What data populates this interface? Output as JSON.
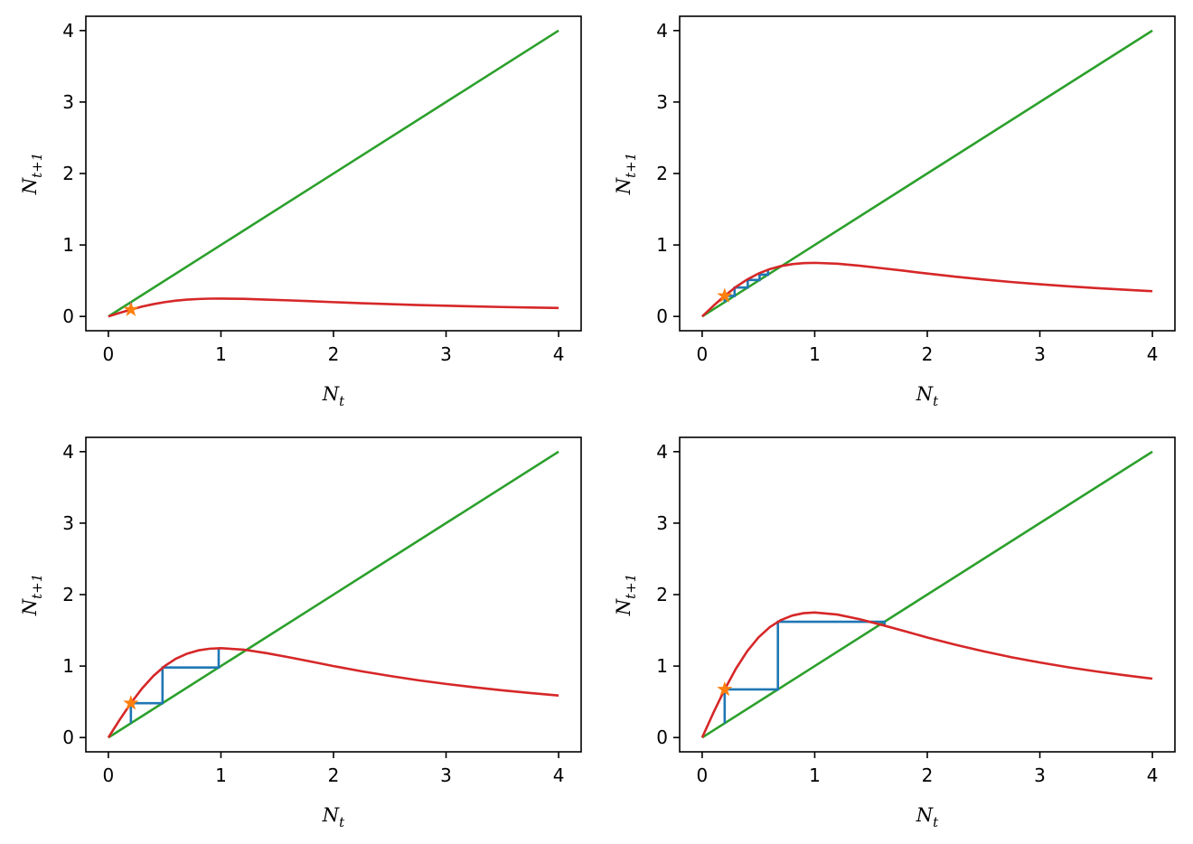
{
  "figure": {
    "background": "#ffffff",
    "colors": {
      "identity": "#2ca02c",
      "map": "#d62728",
      "cobweb": "#1f77b4",
      "start_marker": "#ff7f0e"
    }
  },
  "chart_data": [
    {
      "type": "line",
      "title": "",
      "xlabel": "N_t",
      "ylabel": "N_{t+1}",
      "xlim": [
        -0.2,
        4.2
      ],
      "ylim": [
        -0.2,
        4.2
      ],
      "xticks": [
        "0",
        "1",
        "2",
        "3",
        "4"
      ],
      "yticks": [
        "0",
        "1",
        "2",
        "3",
        "4"
      ],
      "grid": false,
      "identity_line": {
        "x": [
          0,
          4
        ],
        "y": [
          0,
          4
        ]
      },
      "map_curve": {
        "x": [
          0,
          0.1,
          0.2,
          0.3,
          0.4,
          0.5,
          0.6,
          0.7,
          0.8,
          0.9,
          1.0,
          1.2,
          1.4,
          1.6,
          1.8,
          2.0,
          2.25,
          2.5,
          2.75,
          3.0,
          3.25,
          3.5,
          3.75,
          4.0
        ],
        "y": [
          0,
          0.05,
          0.096,
          0.138,
          0.172,
          0.2,
          0.221,
          0.235,
          0.244,
          0.249,
          0.25,
          0.246,
          0.236,
          0.225,
          0.213,
          0.2,
          0.185,
          0.172,
          0.16,
          0.15,
          0.141,
          0.132,
          0.125,
          0.118
        ]
      },
      "cobweb": {
        "x": [
          0.2,
          0.2
        ],
        "y": [
          0.2,
          0.096
        ]
      },
      "start_point": {
        "x": 0.2,
        "y": 0.096
      }
    },
    {
      "type": "line",
      "title": "",
      "xlabel": "N_t",
      "ylabel": "N_{t+1}",
      "xlim": [
        -0.2,
        4.2
      ],
      "ylim": [
        -0.2,
        4.2
      ],
      "xticks": [
        "0",
        "1",
        "2",
        "3",
        "4"
      ],
      "yticks": [
        "0",
        "1",
        "2",
        "3",
        "4"
      ],
      "grid": false,
      "identity_line": {
        "x": [
          0,
          4
        ],
        "y": [
          0,
          4
        ]
      },
      "map_curve": {
        "x": [
          0,
          0.1,
          0.2,
          0.3,
          0.4,
          0.5,
          0.6,
          0.7,
          0.8,
          0.9,
          1.0,
          1.2,
          1.4,
          1.6,
          1.8,
          2.0,
          2.25,
          2.5,
          2.75,
          3.0,
          3.25,
          3.5,
          3.75,
          4.0
        ],
        "y": [
          0,
          0.149,
          0.288,
          0.413,
          0.517,
          0.6,
          0.662,
          0.705,
          0.732,
          0.746,
          0.75,
          0.738,
          0.709,
          0.674,
          0.638,
          0.6,
          0.556,
          0.517,
          0.481,
          0.45,
          0.422,
          0.397,
          0.375,
          0.353
        ]
      },
      "cobweb": {
        "x": [
          0.2,
          0.2,
          0.288,
          0.288,
          0.405,
          0.405,
          0.51,
          0.51,
          0.585,
          0.585
        ],
        "y": [
          0.2,
          0.288,
          0.288,
          0.405,
          0.405,
          0.51,
          0.51,
          0.585,
          0.585,
          0.64
        ]
      },
      "start_point": {
        "x": 0.2,
        "y": 0.288
      }
    },
    {
      "type": "line",
      "title": "",
      "xlabel": "N_t",
      "ylabel": "N_{t+1}",
      "xlim": [
        -0.2,
        4.2
      ],
      "ylim": [
        -0.2,
        4.2
      ],
      "xticks": [
        "0",
        "1",
        "2",
        "3",
        "4"
      ],
      "yticks": [
        "0",
        "1",
        "2",
        "3",
        "4"
      ],
      "grid": false,
      "identity_line": {
        "x": [
          0,
          4
        ],
        "y": [
          0,
          4
        ]
      },
      "map_curve": {
        "x": [
          0,
          0.1,
          0.2,
          0.3,
          0.4,
          0.5,
          0.6,
          0.7,
          0.8,
          0.9,
          1.0,
          1.2,
          1.4,
          1.6,
          1.8,
          2.0,
          2.25,
          2.5,
          2.75,
          3.0,
          3.25,
          3.5,
          3.75,
          4.0
        ],
        "y": [
          0,
          0.248,
          0.481,
          0.688,
          0.862,
          1.0,
          1.103,
          1.174,
          1.22,
          1.243,
          1.25,
          1.23,
          1.182,
          1.124,
          1.063,
          1.0,
          0.927,
          0.862,
          0.802,
          0.75,
          0.703,
          0.661,
          0.623,
          0.588
        ]
      },
      "cobweb": {
        "x": [
          0.2,
          0.2,
          0.481,
          0.481,
          0.98,
          0.98
        ],
        "y": [
          0.2,
          0.481,
          0.481,
          0.98,
          0.98,
          1.25
        ]
      },
      "start_point": {
        "x": 0.2,
        "y": 0.481
      }
    },
    {
      "type": "line",
      "title": "",
      "xlabel": "N_t",
      "ylabel": "N_{t+1}",
      "xlim": [
        -0.2,
        4.2
      ],
      "ylim": [
        -0.2,
        4.2
      ],
      "xticks": [
        "0",
        "1",
        "2",
        "3",
        "4"
      ],
      "yticks": [
        "0",
        "1",
        "2",
        "3",
        "4"
      ],
      "grid": false,
      "identity_line": {
        "x": [
          0,
          4
        ],
        "y": [
          0,
          4
        ]
      },
      "map_curve": {
        "x": [
          0,
          0.1,
          0.2,
          0.3,
          0.4,
          0.5,
          0.6,
          0.7,
          0.8,
          0.9,
          1.0,
          1.2,
          1.4,
          1.6,
          1.8,
          2.0,
          2.25,
          2.5,
          2.75,
          3.0,
          3.25,
          3.5,
          3.75,
          4.0
        ],
        "y": [
          0,
          0.347,
          0.673,
          0.963,
          1.207,
          1.4,
          1.544,
          1.644,
          1.707,
          1.74,
          1.75,
          1.721,
          1.655,
          1.574,
          1.488,
          1.4,
          1.298,
          1.207,
          1.123,
          1.05,
          0.984,
          0.925,
          0.872,
          0.824
        ]
      },
      "cobweb": {
        "x": [
          0.2,
          0.2,
          0.673,
          0.673,
          1.62,
          1.62
        ],
        "y": [
          0.2,
          0.673,
          0.673,
          1.62,
          1.62,
          1.56
        ]
      },
      "start_point": {
        "x": 0.2,
        "y": 0.673
      }
    }
  ]
}
